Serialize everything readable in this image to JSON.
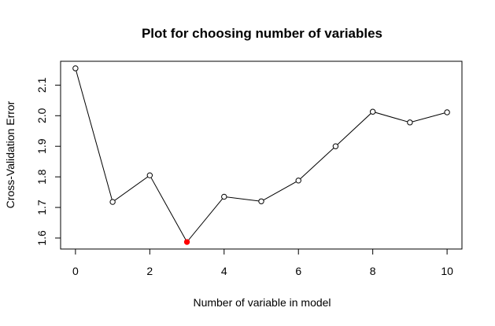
{
  "chart_data": {
    "type": "line",
    "title": "Plot for choosing number of variables",
    "xlabel": "Number of variable in model",
    "ylabel": "Cross-Validation Error",
    "x": [
      0,
      1,
      2,
      3,
      4,
      5,
      6,
      7,
      8,
      9,
      10
    ],
    "y": [
      2.155,
      1.718,
      1.805,
      1.587,
      1.735,
      1.72,
      1.788,
      1.9,
      2.013,
      1.978,
      2.011
    ],
    "highlight_index": 3,
    "highlight_color": "#ff0000",
    "line_color": "#000000",
    "xlim": [
      -0.4,
      10.4
    ],
    "ylim": [
      1.564,
      2.178
    ],
    "xticks": [
      0,
      2,
      4,
      6,
      8,
      10
    ],
    "yticks": [
      1.6,
      1.7,
      1.8,
      1.9,
      2.0,
      2.1
    ],
    "ytick_labels": [
      "1.6",
      "1.7",
      "1.8",
      "1.9",
      "2.0",
      "2.1"
    ],
    "grid": false,
    "legend": "none"
  }
}
